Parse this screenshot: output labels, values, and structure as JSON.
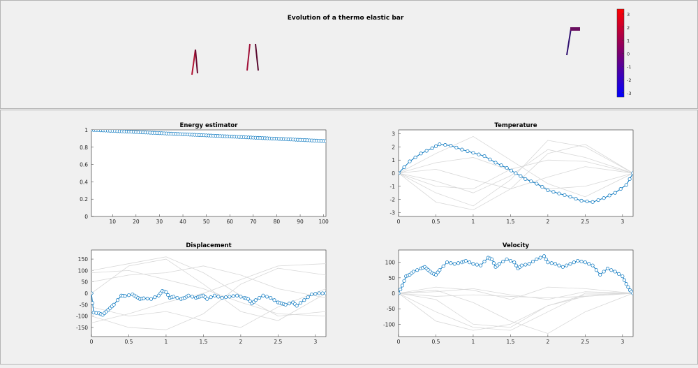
{
  "figure": {
    "title": "Evolution of a thermo elastic bar",
    "colorbar": {
      "ticks": [
        "3",
        "2",
        "1",
        "0",
        "-1",
        "-2",
        "-3"
      ],
      "colors": {
        "top": "#ff0000",
        "middle": "#7a0070",
        "bottom": "#0000ff"
      }
    }
  },
  "chart_data": [
    {
      "id": "energy",
      "type": "line",
      "title": "Energy estimator",
      "xlabel": "",
      "ylabel": "",
      "xlim": [
        1,
        101
      ],
      "ylim": [
        0,
        1
      ],
      "xticks": [
        10,
        20,
        30,
        40,
        50,
        60,
        70,
        80,
        90,
        100
      ],
      "yticks": [
        0,
        0.2,
        0.4,
        0.6,
        0.8,
        1
      ],
      "ytick_labels": [
        "0",
        "0.2",
        "0.4",
        "0.6",
        "0.8",
        "1"
      ],
      "series": [
        {
          "start": 1,
          "end": 0.87,
          "count": 101,
          "markers": true
        }
      ]
    },
    {
      "id": "temperature",
      "type": "line",
      "title": "Temperature",
      "xlabel": "",
      "ylabel": "",
      "xlim": [
        0,
        3.1416
      ],
      "ylim": [
        -3.3,
        3.3
      ],
      "xticks": [
        0,
        0.5,
        1,
        1.5,
        2,
        2.5,
        3
      ],
      "xtick_labels": [
        "0",
        "0.5",
        "1",
        "1.5",
        "2",
        "2.5",
        "3"
      ],
      "yticks": [
        -3,
        -2,
        -1,
        0,
        1,
        2,
        3
      ],
      "ytick_labels": [
        "-3",
        "-2",
        "-1",
        "0",
        "1",
        "2",
        "3"
      ],
      "series": [
        {
          "x": [
            0,
            0.15,
            0.3,
            0.45,
            0.55,
            0.7,
            0.85,
            1.0,
            1.15,
            1.3,
            1.45,
            1.57,
            1.7,
            1.85,
            2.0,
            2.15,
            2.3,
            2.45,
            2.6,
            2.75,
            2.9,
            3.05,
            3.1416
          ],
          "y": [
            0,
            0.9,
            1.5,
            1.9,
            2.2,
            2.1,
            1.8,
            1.55,
            1.3,
            0.8,
            0.4,
            0,
            -0.45,
            -0.8,
            -1.3,
            -1.55,
            -1.8,
            -2.1,
            -2.2,
            -1.9,
            -1.5,
            -0.9,
            0
          ]
        }
      ],
      "background_lines": [
        {
          "x": [
            0,
            0.5,
            1,
            1.5,
            2,
            2.5,
            3.1416
          ],
          "y": [
            0,
            -0.6,
            -1.5,
            -0.2,
            1.8,
            1.2,
            0
          ]
        },
        {
          "x": [
            0,
            0.5,
            1,
            1.5,
            2,
            2.5,
            3.1416
          ],
          "y": [
            0,
            -1.5,
            -2.5,
            -0.5,
            2.5,
            2,
            0
          ]
        },
        {
          "x": [
            0,
            0.5,
            1,
            1.5,
            2,
            2.5,
            3.1416
          ],
          "y": [
            0,
            0.8,
            1.2,
            0.2,
            -1.2,
            -1.0,
            0
          ]
        },
        {
          "x": [
            0,
            0.5,
            1,
            1.5,
            2,
            2.5,
            3.1416
          ],
          "y": [
            0,
            -2.2,
            -2.8,
            -1.2,
            1.5,
            2.2,
            0
          ]
        },
        {
          "x": [
            0,
            0.5,
            1,
            1.5,
            2,
            2.5,
            3.1416
          ],
          "y": [
            0,
            1.5,
            2.8,
            1.0,
            -0.8,
            -1.8,
            0
          ]
        },
        {
          "x": [
            0,
            0.5,
            1,
            1.5,
            2,
            2.5,
            3.1416
          ],
          "y": [
            0,
            -1.0,
            -1.2,
            0.3,
            1.0,
            0.9,
            0
          ]
        },
        {
          "x": [
            0,
            0.5,
            1,
            1.5,
            2,
            2.5,
            3.1416
          ],
          "y": [
            0,
            0.3,
            -0.5,
            -1.2,
            -0.3,
            0.5,
            0
          ]
        }
      ]
    },
    {
      "id": "displacement",
      "type": "line",
      "title": "Displacement",
      "xlabel": "",
      "ylabel": "",
      "xlim": [
        0,
        3.1416
      ],
      "ylim": [
        -190,
        190
      ],
      "xticks": [
        0,
        0.5,
        1,
        1.5,
        2,
        2.5,
        3
      ],
      "xtick_labels": [
        "0",
        "0.5",
        "1",
        "1.5",
        "2",
        "2.5",
        "3"
      ],
      "yticks": [
        -150,
        -100,
        -50,
        0,
        50,
        100,
        150
      ],
      "ytick_labels": [
        "-150",
        "-100",
        "-50",
        "0",
        "50",
        "100",
        "150"
      ],
      "series": [
        {
          "x": [
            0,
            0.03,
            0.1,
            0.15,
            0.2,
            0.25,
            0.3,
            0.4,
            0.45,
            0.55,
            0.6,
            0.65,
            0.7,
            0.8,
            0.9,
            0.95,
            1.0,
            1.05,
            1.1,
            1.2,
            1.25,
            1.3,
            1.4,
            1.45,
            1.5,
            1.55,
            1.65,
            1.75,
            1.85,
            1.95,
            2.05,
            2.1,
            2.15,
            2.2,
            2.3,
            2.4,
            2.5,
            2.55,
            2.6,
            2.7,
            2.75,
            2.85,
            2.95,
            3.05,
            3.1416
          ],
          "y": [
            0,
            -85,
            -88,
            -95,
            -80,
            -65,
            -50,
            -10,
            -12,
            -5,
            -15,
            -25,
            -22,
            -25,
            -10,
            10,
            5,
            -20,
            -15,
            -25,
            -20,
            -10,
            -20,
            -15,
            -10,
            -25,
            -10,
            -20,
            -15,
            -10,
            -20,
            -25,
            -45,
            -30,
            -10,
            -20,
            -40,
            -45,
            -50,
            -40,
            -55,
            -30,
            -5,
            0,
            0
          ]
        }
      ],
      "background_lines": [
        {
          "x": [
            0,
            0.5,
            1,
            1.5,
            2,
            2.5,
            3.1416
          ],
          "y": [
            0,
            120,
            150,
            40,
            -80,
            -120,
            0
          ]
        },
        {
          "x": [
            0,
            0.5,
            1,
            1.5,
            2,
            2.5,
            3.1416
          ],
          "y": [
            100,
            130,
            160,
            90,
            -10,
            -100,
            -80
          ]
        },
        {
          "x": [
            0,
            0.5,
            1,
            1.5,
            2,
            2.5,
            3.1416
          ],
          "y": [
            -100,
            -150,
            -160,
            -90,
            40,
            110,
            80
          ]
        },
        {
          "x": [
            0,
            0.5,
            1,
            1.5,
            2,
            2.5,
            3.1416
          ],
          "y": [
            50,
            80,
            90,
            120,
            80,
            20,
            -20
          ]
        },
        {
          "x": [
            0,
            0.5,
            1,
            1.5,
            2,
            2.5,
            3.1416
          ],
          "y": [
            -60,
            -100,
            -80,
            -120,
            -150,
            -60,
            20
          ]
        },
        {
          "x": [
            0,
            0.5,
            1,
            1.5,
            2,
            2.5,
            3.1416
          ],
          "y": [
            90,
            100,
            60,
            20,
            -40,
            -90,
            -100
          ]
        },
        {
          "x": [
            0,
            0.5,
            1,
            1.5,
            2,
            2.5,
            3.1416
          ],
          "y": [
            -130,
            -90,
            -40,
            0,
            60,
            120,
            130
          ]
        }
      ]
    },
    {
      "id": "velocity",
      "type": "line",
      "title": "Velocity",
      "xlabel": "",
      "ylabel": "",
      "xlim": [
        0,
        3.1416
      ],
      "ylim": [
        -140,
        140
      ],
      "xticks": [
        0,
        0.5,
        1,
        1.5,
        2,
        2.5,
        3
      ],
      "xtick_labels": [
        "0",
        "0.5",
        "1",
        "1.5",
        "2",
        "2.5",
        "3"
      ],
      "yticks": [
        -100,
        -50,
        0,
        50,
        100
      ],
      "ytick_labels": [
        "-100",
        "-50",
        "0",
        "50",
        "100"
      ],
      "series": [
        {
          "x": [
            0,
            0.05,
            0.1,
            0.15,
            0.2,
            0.3,
            0.35,
            0.4,
            0.45,
            0.5,
            0.55,
            0.65,
            0.75,
            0.85,
            0.9,
            1.0,
            1.1,
            1.2,
            1.25,
            1.3,
            1.35,
            1.45,
            1.55,
            1.6,
            1.65,
            1.75,
            1.85,
            1.95,
            2.0,
            2.1,
            2.2,
            2.3,
            2.4,
            2.5,
            2.6,
            2.7,
            2.8,
            2.9,
            3.0,
            3.05,
            3.1,
            3.1416
          ],
          "y": [
            0,
            25,
            55,
            60,
            70,
            80,
            85,
            75,
            65,
            60,
            75,
            100,
            95,
            100,
            105,
            95,
            90,
            115,
            110,
            85,
            95,
            110,
            100,
            80,
            90,
            95,
            110,
            120,
            100,
            95,
            85,
            95,
            105,
            100,
            90,
            60,
            80,
            70,
            55,
            30,
            10,
            0
          ]
        }
      ],
      "background_lines": [
        {
          "x": [
            0,
            0.5,
            1,
            1.5,
            2,
            2.5,
            3.1416
          ],
          "y": [
            0,
            -20,
            -100,
            -110,
            -40,
            -5,
            0
          ]
        },
        {
          "x": [
            0,
            0.5,
            1,
            1.5,
            2,
            2.5,
            3.1416
          ],
          "y": [
            0,
            -60,
            -110,
            -120,
            -60,
            0,
            0
          ]
        },
        {
          "x": [
            0,
            0.5,
            1,
            1.5,
            2,
            2.5,
            3.1416
          ],
          "y": [
            0,
            10,
            -30,
            -90,
            -130,
            -60,
            0
          ]
        },
        {
          "x": [
            0,
            0.5,
            1,
            1.5,
            2,
            2.5,
            3.1416
          ],
          "y": [
            0,
            20,
            10,
            -20,
            20,
            15,
            0
          ]
        },
        {
          "x": [
            0,
            0.5,
            1,
            1.5,
            2,
            2.5,
            3.1416
          ],
          "y": [
            0,
            -10,
            -5,
            -10,
            -15,
            -10,
            0
          ]
        },
        {
          "x": [
            0,
            0.5,
            1,
            1.5,
            2,
            2.5,
            3.1416
          ],
          "y": [
            0,
            -90,
            -120,
            -100,
            -40,
            -10,
            0
          ]
        },
        {
          "x": [
            0,
            0.5,
            1,
            1.5,
            2,
            2.5,
            3.1416
          ],
          "y": [
            0,
            5,
            15,
            -5,
            -20,
            5,
            0
          ]
        }
      ]
    }
  ]
}
